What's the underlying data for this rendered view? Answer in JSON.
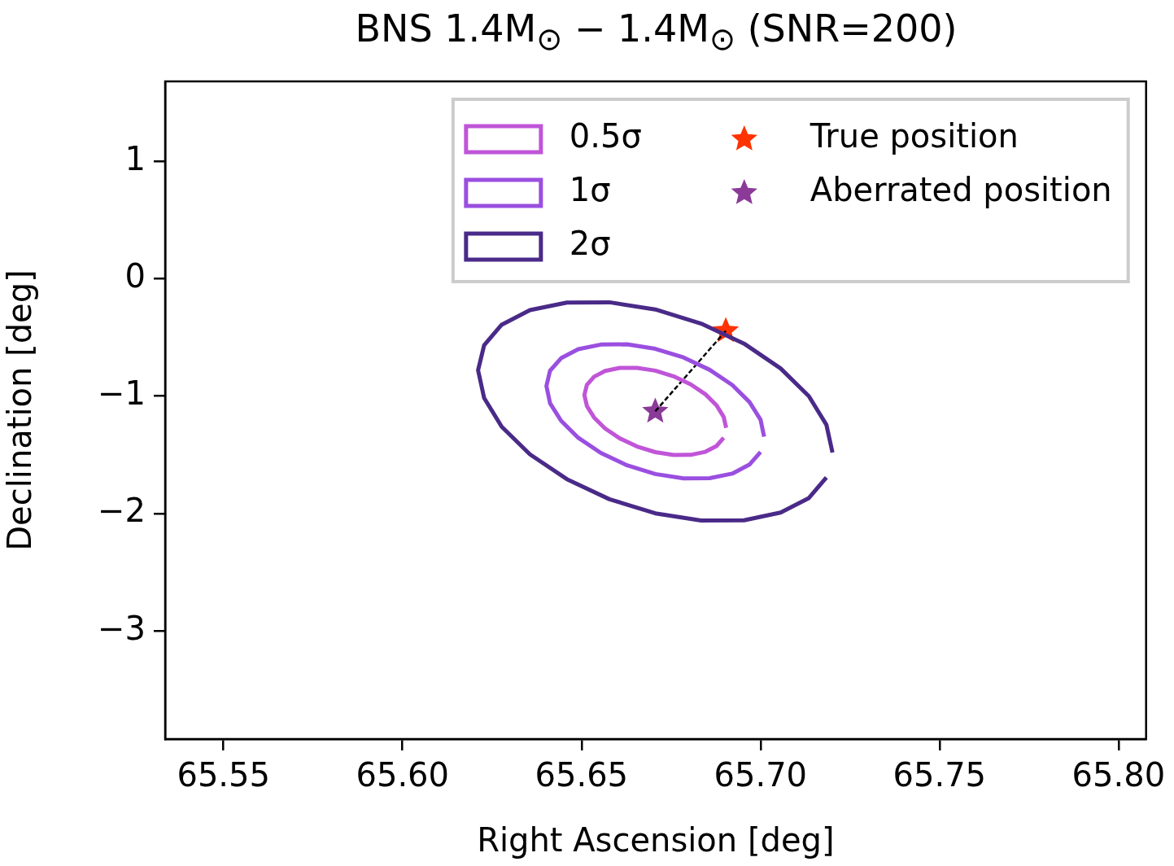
{
  "chart_data": {
    "type": "line",
    "title": "BNS 1.4M$_{⊙}$ − 1.4M$_{⊙}$ (SNR=200)",
    "xlabel": "Right Ascension [deg]",
    "ylabel": "Declination [deg]",
    "xlim": [
      65.5337,
      65.8077
    ],
    "ylim": [
      -3.92,
      1.68
    ],
    "xticks": [
      {
        "value": 65.55,
        "label": "65.55"
      },
      {
        "value": 65.6,
        "label": "65.60"
      },
      {
        "value": 65.65,
        "label": "65.65"
      },
      {
        "value": 65.7,
        "label": "65.70"
      },
      {
        "value": 65.75,
        "label": "65.75"
      },
      {
        "value": 65.8,
        "label": "65.80"
      }
    ],
    "yticks": [
      {
        "value": 1,
        "label": "1"
      },
      {
        "value": 0,
        "label": "0"
      },
      {
        "value": -1,
        "label": "−1"
      },
      {
        "value": -2,
        "label": "−2"
      },
      {
        "value": -3,
        "label": "−3"
      }
    ],
    "grid": false,
    "legend": "top right",
    "series": [
      {
        "name": "0.5σ",
        "type": "line",
        "color": "#c055d8",
        "marker": "none",
        "x": [
          65.6904,
          65.6897,
          65.6877,
          65.6846,
          65.6805,
          65.6757,
          65.6706,
          65.6655,
          65.6607,
          65.6566,
          65.6535,
          65.6515,
          65.6508,
          65.6515,
          65.6535,
          65.6566,
          65.6607,
          65.6655,
          65.6706,
          65.6757,
          65.6805,
          65.6846,
          65.6877,
          65.6897
        ],
        "values": [
          -1.27,
          -1.176,
          -1.078,
          -0.984,
          -0.9,
          -0.831,
          -0.783,
          -0.759,
          -0.76,
          -0.786,
          -0.835,
          -0.905,
          -0.99,
          -1.084,
          -1.182,
          -1.276,
          -1.36,
          -1.429,
          -1.477,
          -1.501,
          -1.5,
          -1.474,
          -1.425,
          -1.355
        ]
      },
      {
        "name": "1σ",
        "type": "line",
        "color": "#9a4fe0",
        "marker": "none",
        "x": [
          65.701,
          65.7,
          65.6969,
          65.6921,
          65.6858,
          65.6785,
          65.6706,
          65.6627,
          65.6554,
          65.6491,
          65.6443,
          65.6412,
          65.6402,
          65.6412,
          65.6443,
          65.6491,
          65.6554,
          65.6627,
          65.6706,
          65.6785,
          65.6858,
          65.6921,
          65.6969,
          65.7
        ],
        "values": [
          -1.346,
          -1.2,
          -1.05,
          -0.905,
          -0.776,
          -0.671,
          -0.597,
          -0.559,
          -0.561,
          -0.6,
          -0.677,
          -0.784,
          -0.914,
          -1.06,
          -1.21,
          -1.355,
          -1.484,
          -1.589,
          -1.663,
          -1.701,
          -1.699,
          -1.66,
          -1.583,
          -1.476
        ]
      },
      {
        "name": "2σ",
        "type": "line",
        "color": "#4a2a88",
        "marker": "none",
        "x": [
          65.7201,
          65.7184,
          65.7135,
          65.7056,
          65.6954,
          65.6834,
          65.6706,
          65.6578,
          65.6459,
          65.6356,
          65.6277,
          65.6228,
          65.6211,
          65.6228,
          65.6277,
          65.6356,
          65.6459,
          65.6578,
          65.6706,
          65.6834,
          65.6954,
          65.7056,
          65.7135,
          65.7184
        ],
        "values": [
          -1.481,
          -1.244,
          -1.0,
          -0.764,
          -0.553,
          -0.382,
          -0.262,
          -0.201,
          -0.203,
          -0.268,
          -0.392,
          -0.567,
          -0.779,
          -1.016,
          -1.26,
          -1.496,
          -1.707,
          -1.878,
          -1.998,
          -2.059,
          -2.057,
          -1.992,
          -1.868,
          -1.693
        ]
      },
      {
        "type": "line",
        "color": "#000000",
        "marker": "none",
        "line_style": "dashed",
        "x": [
          65.6706,
          65.6903
        ],
        "values": [
          -1.13,
          -0.444
        ]
      },
      {
        "name": "True position",
        "type": "scatter",
        "color": "#ff3300",
        "marker": "star",
        "x": [
          65.6903
        ],
        "values": [
          -0.444
        ]
      },
      {
        "name": "Aberrated position",
        "type": "scatter",
        "color": "#8b3a98",
        "marker": "star",
        "x": [
          65.6706
        ],
        "values": [
          -1.13
        ]
      }
    ]
  }
}
